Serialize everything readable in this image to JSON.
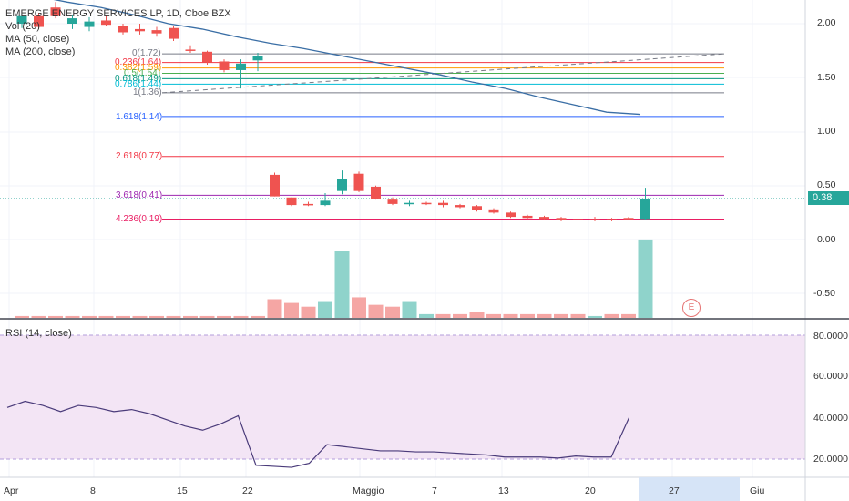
{
  "header": {
    "symbol_line": "EMERGE ENERGY SERVICES LP, 1D, Cboe BZX",
    "vol_label": "Vol (20)",
    "ma50_label": "MA (50, close)",
    "ma200_label": "MA (200, close)"
  },
  "rsi_header": {
    "label": "RSI (14, close)"
  },
  "price_badge": {
    "value": "0.38",
    "color": "#26a69a"
  },
  "event_badge": {
    "letter": "E"
  },
  "price_axis": {
    "ticks": [
      "2.00",
      "1.50",
      "1.00",
      "0.50",
      "0.00",
      "-0.50"
    ]
  },
  "rsi_axis": {
    "ticks": [
      "80.0000",
      "60.0000",
      "40.0000",
      "20.0000"
    ]
  },
  "time_axis": {
    "labels": [
      "Apr",
      "8",
      "15",
      "22",
      "Maggio",
      "7",
      "13",
      "20",
      "27",
      "Giu"
    ],
    "highlight": "27"
  },
  "fib_levels": [
    {
      "text": "0(1.72)",
      "color": "#787b86"
    },
    {
      "text": "0.236(1.64)",
      "color": "#f23645"
    },
    {
      "text": "0.382(1.59)",
      "color": "#ff9800"
    },
    {
      "text": "0.5(1.54)",
      "color": "#4caf50"
    },
    {
      "text": "0.618(1.49)",
      "color": "#089981"
    },
    {
      "text": "0.786(1.44)",
      "color": "#00bcd4"
    },
    {
      "text": "1(1.36)",
      "color": "#787b86"
    },
    {
      "text": "1.618(1.14)",
      "color": "#2962ff"
    },
    {
      "text": "2.618(0.77)",
      "color": "#f23645"
    },
    {
      "text": "3.618(0.41)",
      "color": "#9c27b0"
    },
    {
      "text": "4.236(0.19)",
      "color": "#e91e63"
    }
  ],
  "colors": {
    "up": "#26a69a",
    "down": "#ef5350",
    "ma_line": "#3a6ea5",
    "rsi_line": "#4a3b7a",
    "rsi_band": "#f3e5f5"
  },
  "chart_data": {
    "type": "candlestick",
    "price_axis_range": [
      -0.75,
      2.2
    ],
    "candles": [
      {
        "o": 2.0,
        "h": 2.08,
        "l": 1.96,
        "c": 2.07
      },
      {
        "o": 2.07,
        "h": 2.1,
        "l": 1.95,
        "c": 1.97
      },
      {
        "o": 2.15,
        "h": 2.2,
        "l": 2.05,
        "c": 2.07
      },
      {
        "o": 2.0,
        "h": 2.08,
        "l": 1.95,
        "c": 2.05
      },
      {
        "o": 1.97,
        "h": 2.06,
        "l": 1.93,
        "c": 2.02
      },
      {
        "o": 2.03,
        "h": 2.08,
        "l": 1.98,
        "c": 1.99
      },
      {
        "o": 1.98,
        "h": 2.0,
        "l": 1.9,
        "c": 1.92
      },
      {
        "o": 1.95,
        "h": 2.0,
        "l": 1.9,
        "c": 1.93
      },
      {
        "o": 1.94,
        "h": 1.97,
        "l": 1.88,
        "c": 1.91
      },
      {
        "o": 1.96,
        "h": 1.98,
        "l": 1.84,
        "c": 1.86
      },
      {
        "o": 1.76,
        "h": 1.8,
        "l": 1.73,
        "c": 1.75
      },
      {
        "o": 1.74,
        "h": 1.75,
        "l": 1.62,
        "c": 1.64
      },
      {
        "o": 1.65,
        "h": 1.67,
        "l": 1.55,
        "c": 1.57
      },
      {
        "o": 1.57,
        "h": 1.67,
        "l": 1.4,
        "c": 1.63
      },
      {
        "o": 1.66,
        "h": 1.73,
        "l": 1.56,
        "c": 1.7
      },
      {
        "o": 0.6,
        "h": 0.62,
        "l": 0.4,
        "c": 0.4
      },
      {
        "o": 0.39,
        "h": 0.39,
        "l": 0.31,
        "c": 0.32
      },
      {
        "o": 0.33,
        "h": 0.35,
        "l": 0.31,
        "c": 0.32
      },
      {
        "o": 0.32,
        "h": 0.43,
        "l": 0.31,
        "c": 0.36
      },
      {
        "o": 0.45,
        "h": 0.64,
        "l": 0.42,
        "c": 0.56
      },
      {
        "o": 0.61,
        "h": 0.63,
        "l": 0.44,
        "c": 0.45
      },
      {
        "o": 0.49,
        "h": 0.5,
        "l": 0.37,
        "c": 0.38
      },
      {
        "o": 0.37,
        "h": 0.39,
        "l": 0.32,
        "c": 0.33
      },
      {
        "o": 0.33,
        "h": 0.36,
        "l": 0.31,
        "c": 0.34
      },
      {
        "o": 0.34,
        "h": 0.35,
        "l": 0.32,
        "c": 0.33
      },
      {
        "o": 0.34,
        "h": 0.36,
        "l": 0.3,
        "c": 0.32
      },
      {
        "o": 0.32,
        "h": 0.33,
        "l": 0.29,
        "c": 0.3
      },
      {
        "o": 0.31,
        "h": 0.32,
        "l": 0.26,
        "c": 0.27
      },
      {
        "o": 0.28,
        "h": 0.29,
        "l": 0.24,
        "c": 0.25
      },
      {
        "o": 0.25,
        "h": 0.26,
        "l": 0.2,
        "c": 0.21
      },
      {
        "o": 0.22,
        "h": 0.23,
        "l": 0.19,
        "c": 0.2
      },
      {
        "o": 0.21,
        "h": 0.22,
        "l": 0.18,
        "c": 0.19
      },
      {
        "o": 0.2,
        "h": 0.21,
        "l": 0.17,
        "c": 0.18
      },
      {
        "o": 0.19,
        "h": 0.2,
        "l": 0.17,
        "c": 0.18
      },
      {
        "o": 0.19,
        "h": 0.21,
        "l": 0.17,
        "c": 0.18
      },
      {
        "o": 0.19,
        "h": 0.2,
        "l": 0.17,
        "c": 0.18
      },
      {
        "o": 0.2,
        "h": 0.21,
        "l": 0.18,
        "c": 0.19
      },
      {
        "o": 0.19,
        "h": 0.48,
        "l": 0.18,
        "c": 0.38
      }
    ],
    "volume": [
      1,
      1,
      1,
      1,
      1,
      1,
      1,
      1,
      1,
      1,
      1,
      1,
      1,
      1,
      1,
      10,
      8,
      6,
      9,
      36,
      11,
      7,
      6,
      9,
      2,
      2,
      2,
      3,
      2,
      2,
      2,
      2,
      2,
      2,
      1,
      2,
      2,
      42
    ],
    "volume_up": [
      false,
      false,
      false,
      false,
      false,
      false,
      false,
      false,
      false,
      false,
      false,
      false,
      false,
      false,
      false,
      false,
      false,
      false,
      true,
      true,
      false,
      false,
      false,
      true,
      true,
      false,
      false,
      false,
      false,
      false,
      false,
      false,
      false,
      false,
      true,
      false,
      false,
      true
    ],
    "ma200": [
      2.3,
      2.26,
      2.2,
      2.15,
      2.08,
      2.0,
      1.95,
      1.88,
      1.82,
      1.77,
      1.71,
      1.65,
      1.59,
      1.53,
      1.46,
      1.4,
      1.32,
      1.25,
      1.18,
      1.16
    ],
    "rsi": [
      45,
      48,
      46,
      43,
      46,
      45,
      43,
      44,
      42,
      39,
      36,
      34,
      37,
      41,
      17,
      16.5,
      16,
      18,
      27,
      26,
      25,
      24,
      24,
      23.5,
      23.5,
      23,
      22.5,
      22,
      21,
      21,
      21,
      20.5,
      21.5,
      21,
      21,
      40
    ],
    "rsi_range": [
      10,
      85
    ]
  }
}
